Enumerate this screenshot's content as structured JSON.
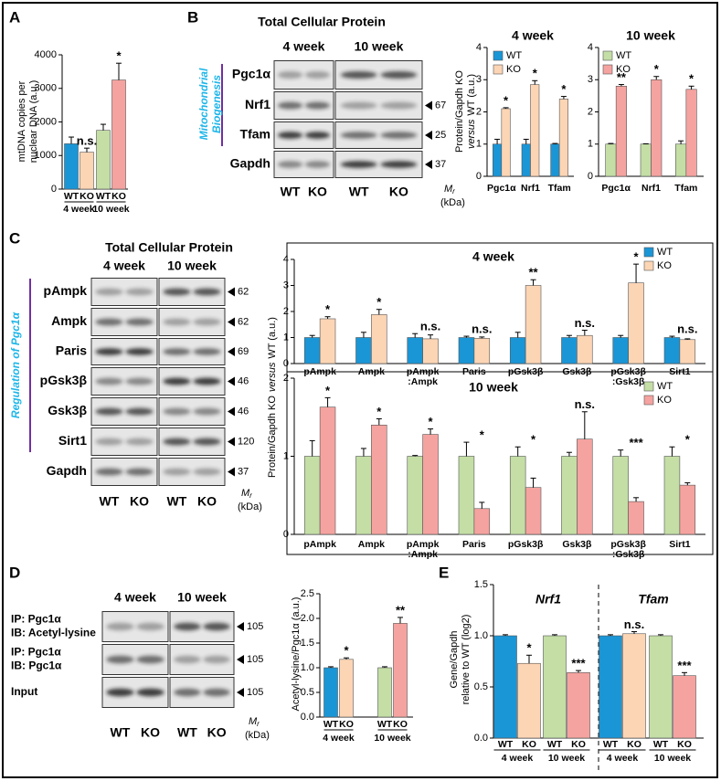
{
  "panels": {
    "A": {
      "letter": "A",
      "chart": {
        "type": "bar",
        "ylabel": [
          "mtDNA copies per",
          "nuclear DNA (a.u.)"
        ],
        "categories": [
          "WT",
          "KO",
          "WT",
          "KO"
        ],
        "groups": [
          "4 week",
          "10 week"
        ],
        "values": [
          1350,
          1100,
          1750,
          3250
        ],
        "errors": [
          200,
          120,
          180,
          500
        ],
        "colors": [
          "#1a96d6",
          "#fcd5b5",
          "#c4dea6",
          "#f5a3a0"
        ],
        "ylim": [
          0,
          4000
        ],
        "yticks": [
          0,
          1000,
          2000,
          3000,
          4000
        ],
        "annotations": [
          {
            "index": 1,
            "label": "n.s."
          },
          {
            "index": 3,
            "label": "*"
          }
        ]
      }
    },
    "B": {
      "letter": "B",
      "blot": {
        "title": "Total Cellular Protein",
        "periods": [
          "4 week",
          "10 week"
        ],
        "side_label": [
          "Mitochondrial",
          "Biogenesis"
        ],
        "rows": [
          {
            "name": "Pgc1α"
          },
          {
            "name": "Nrf1",
            "mr": 67
          },
          {
            "name": "Tfam",
            "mr": 25
          },
          {
            "name": "Gapdh",
            "mr": 37
          }
        ],
        "lanes": [
          "WT",
          "KO",
          "WT",
          "KO"
        ],
        "mr": {
          "symbol": "M",
          "subscript": "r",
          "unit": "(kDa)"
        }
      },
      "ylabel": [
        "Protein/Gapdh KO",
        "versus",
        "WT (a.u.)"
      ],
      "charts": [
        {
          "type": "bar",
          "title": "4 week",
          "categories": [
            "Pgc1α",
            "Nrf1",
            "Tfam"
          ],
          "series": [
            {
              "name": "WT",
              "color": "#1a96d6",
              "values": [
                1,
                1,
                1
              ],
              "errors": [
                0.15,
                0.15,
                0.02
              ]
            },
            {
              "name": "KO",
              "color": "#fcd5b5",
              "values": [
                2.1,
                2.85,
                2.4
              ],
              "errors": [
                0.03,
                0.12,
                0.08
              ],
              "annotations": [
                "*",
                "*",
                "*"
              ]
            }
          ],
          "ylim": [
            0,
            4
          ],
          "yticks": [
            0,
            1,
            2,
            3,
            4
          ],
          "legend": "upper left"
        },
        {
          "type": "bar",
          "title": "10 week",
          "categories": [
            "Pgc1α",
            "Nrf1",
            "Tfam"
          ],
          "series": [
            {
              "name": "WT",
              "color": "#c4dea6",
              "values": [
                1,
                1,
                1
              ],
              "errors": [
                0.02,
                0.01,
                0.1
              ]
            },
            {
              "name": "KO",
              "color": "#f5a3a0",
              "values": [
                2.8,
                3.0,
                2.7
              ],
              "errors": [
                0.05,
                0.1,
                0.1
              ],
              "annotations": [
                "**",
                "*",
                "*"
              ]
            }
          ],
          "ylim": [
            0,
            4
          ],
          "yticks": [
            0,
            1,
            2,
            3,
            4
          ],
          "legend": "upper left"
        }
      ]
    },
    "C": {
      "letter": "C",
      "blot": {
        "title": "Total Cellular Protein",
        "periods": [
          "4 week",
          "10 week"
        ],
        "side_label": [
          "Regulation of Pgc1α"
        ],
        "rows": [
          {
            "name": "pAmpk",
            "mr": 62
          },
          {
            "name": "Ampk",
            "mr": 62
          },
          {
            "name": "Paris",
            "mr": 69
          },
          {
            "name": "pGsk3β",
            "mr": 46
          },
          {
            "name": "Gsk3β",
            "mr": 46
          },
          {
            "name": "Sirt1",
            "mr": 120
          },
          {
            "name": "Gapdh",
            "mr": 37
          }
        ],
        "lanes": [
          "WT",
          "KO",
          "WT",
          "KO"
        ],
        "mr": {
          "symbol": "M",
          "subscript": "r",
          "unit": "(kDa)"
        }
      },
      "ylabel": [
        "Protein/Gapdh KO",
        "versus",
        "WT (a.u.)"
      ],
      "charts": [
        {
          "type": "bar",
          "title": "4 week",
          "categories": [
            "pAmpk",
            "Ampk",
            [
              "pAmpk",
              ":Ampk"
            ],
            "Paris",
            "pGsk3β",
            "Gsk3β",
            [
              "pGsk3β",
              ":Gsk3β"
            ],
            "Sirt1"
          ],
          "series": [
            {
              "name": "WT",
              "color": "#1a96d6",
              "values": [
                1,
                1,
                1,
                1,
                1,
                1,
                1,
                1
              ],
              "errors": [
                0.08,
                0.2,
                0.15,
                0.05,
                0.2,
                0.08,
                0.08,
                0.05
              ]
            },
            {
              "name": "KO",
              "color": "#fcd5b5",
              "values": [
                1.72,
                1.88,
                0.95,
                0.97,
                3.0,
                1.08,
                3.1,
                0.92
              ],
              "errors": [
                0.08,
                0.2,
                0.15,
                0.05,
                0.22,
                0.2,
                0.72,
                0.03
              ],
              "annotations": [
                "*",
                "*",
                "n.s.",
                "n.s.",
                "**",
                "n.s.",
                "*",
                "n.s."
              ]
            }
          ],
          "ylim": [
            0,
            4
          ],
          "yticks": [
            0,
            1,
            2,
            3,
            4
          ],
          "legend": "upper right"
        },
        {
          "type": "bar",
          "title": "10 week",
          "categories": [
            "pAmpk",
            "Ampk",
            [
              "pAmpk",
              ":Ampk"
            ],
            "Paris",
            "pGsk3β",
            "Gsk3β",
            [
              "pGsk3β",
              ":Gsk3β"
            ],
            "Sirt1"
          ],
          "series": [
            {
              "name": "WT",
              "color": "#c4dea6",
              "values": [
                1,
                1,
                1,
                1,
                1,
                1,
                1,
                1
              ],
              "errors": [
                0.2,
                0.1,
                0.01,
                0.18,
                0.12,
                0.05,
                0.08,
                0.12
              ]
            },
            {
              "name": "KO",
              "color": "#f5a3a0",
              "values": [
                1.63,
                1.4,
                1.28,
                0.33,
                0.6,
                1.22,
                0.42,
                0.63
              ],
              "errors": [
                0.12,
                0.08,
                0.07,
                0.08,
                0.12,
                0.35,
                0.05,
                0.03
              ],
              "annotations": [
                "*",
                "*",
                "*",
                "*",
                "*",
                "n.s.",
                "***",
                "*"
              ]
            }
          ],
          "ylim": [
            0,
            2
          ],
          "yticks": [
            0,
            1,
            2
          ],
          "legend": "upper right"
        }
      ]
    },
    "D": {
      "letter": "D",
      "blot": {
        "periods": [
          "4 week",
          "10 week"
        ],
        "rows": [
          {
            "lines": [
              "IP: Pgc1α",
              "IB: Acetyl-lysine"
            ],
            "mr": 105
          },
          {
            "lines": [
              "IP: Pgc1α",
              "IB: Pgc1α"
            ],
            "mr": 105
          },
          {
            "lines": [
              "Input"
            ],
            "mr": 105
          }
        ],
        "lanes": [
          "WT",
          "KO",
          "WT",
          "KO"
        ],
        "mr": {
          "symbol": "M",
          "subscript": "r",
          "unit": "(kDa)"
        }
      },
      "chart": {
        "type": "bar",
        "ylabel": [
          "Acetyl-lysine/Pgc1α (a.u.)"
        ],
        "categories": [
          "WT",
          "KO",
          "WT",
          "KO"
        ],
        "groups": [
          "4 week",
          "10 week"
        ],
        "values": [
          1.0,
          1.17,
          1.0,
          1.9
        ],
        "errors": [
          0.02,
          0.03,
          0.02,
          0.12
        ],
        "colors": [
          "#1a96d6",
          "#fcd5b5",
          "#c4dea6",
          "#f5a3a0"
        ],
        "ylim": [
          0,
          2.5
        ],
        "yticks": [
          {
            "value": 0,
            "label": "0.0"
          },
          {
            "value": 0.5,
            "label": "0.5"
          },
          {
            "value": 1,
            "label": "1.0"
          },
          {
            "value": 1.5,
            "label": "1.5"
          },
          {
            "value": 2,
            "label": "2.0"
          },
          {
            "value": 2.5,
            "label": "2.5"
          }
        ],
        "annotations": [
          {
            "index": 1,
            "label": "*"
          },
          {
            "index": 3,
            "label": "**"
          }
        ]
      }
    },
    "E": {
      "letter": "E",
      "chart": {
        "type": "bar",
        "ylabel": [
          "Gene/Gapdh",
          "relative to WT (log2)"
        ],
        "categories": [
          "WT",
          "KO",
          "WT",
          "KO"
        ],
        "groups": [
          "4 week",
          "10 week"
        ],
        "colors": [
          "#1a96d6",
          "#fcd5b5",
          "#c4dea6",
          "#f5a3a0"
        ],
        "ylim": [
          0,
          1.5
        ],
        "yticks": [
          {
            "value": 0,
            "label": "0.0"
          },
          {
            "value": 0.5,
            "label": "0.5"
          },
          {
            "value": 1,
            "label": "1.0"
          },
          {
            "value": 1.5,
            "label": "1.5"
          }
        ],
        "subpanels": [
          {
            "title": "Nrf1",
            "values": [
              1.0,
              0.73,
              1.0,
              0.64
            ],
            "errors": [
              0.01,
              0.08,
              0.01,
              0.02
            ],
            "annotations": [
              {
                "index": 1,
                "label": "*"
              },
              {
                "index": 3,
                "label": "***"
              }
            ]
          },
          {
            "title": "Tfam",
            "values": [
              1.0,
              1.02,
              1.0,
              0.61
            ],
            "errors": [
              0.01,
              0.02,
              0.01,
              0.03
            ],
            "annotations": [
              {
                "index": 1,
                "label": "n.s."
              },
              {
                "index": 3,
                "label": "***"
              }
            ]
          }
        ]
      }
    }
  }
}
